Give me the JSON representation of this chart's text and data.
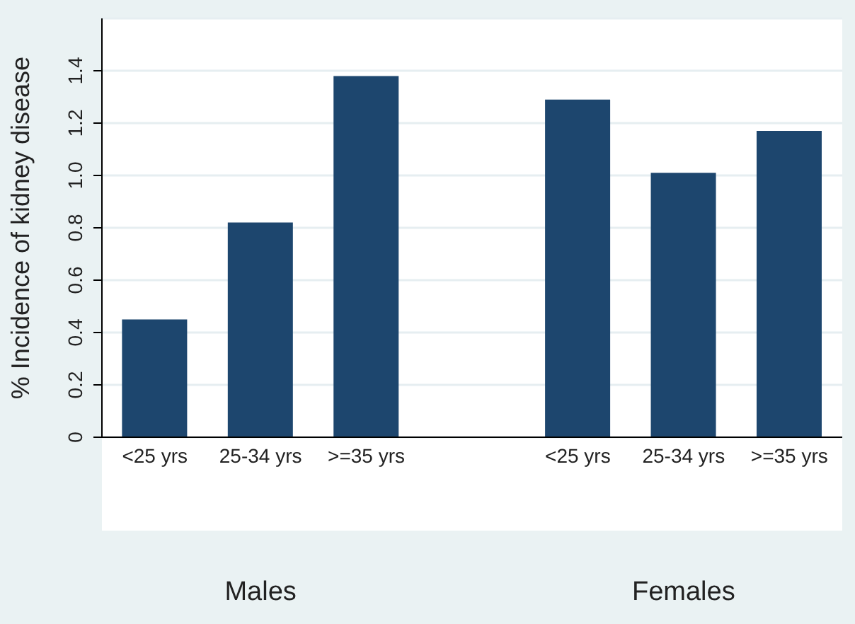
{
  "chart_data": {
    "type": "bar",
    "ylabel": "% Incidence of kidney disease",
    "categories": [
      "<25 yrs",
      "25-34 yrs",
      ">=35 yrs",
      null,
      "<25 yrs",
      "25-34 yrs",
      ">=35 yrs"
    ],
    "values": [
      0.45,
      0.82,
      1.38,
      null,
      1.29,
      1.01,
      1.17
    ],
    "color": "#1d466e",
    "ylim": [
      0,
      1.6
    ],
    "yticks": [
      0,
      0.2,
      0.4,
      0.6,
      0.8,
      {
        "value": 1,
        "label": "1.0"
      },
      1.2,
      1.4
    ],
    "grid": "y",
    "annotations": [
      "Males",
      "Females"
    ]
  }
}
